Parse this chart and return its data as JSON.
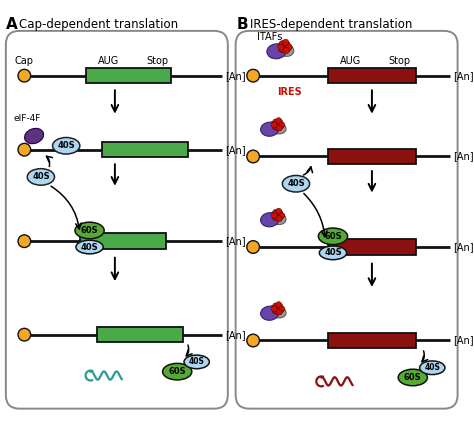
{
  "title_A": "Cap-dependent translation",
  "title_B": "IRES-dependent translation",
  "label_A": "A",
  "label_B": "B",
  "bg_color": "#ffffff",
  "line_color": "#111111",
  "cap_color": "#f5a623",
  "green_box_color": "#4aaa4a",
  "red_box_color": "#8b1010",
  "s40_color_light": "#aed6f1",
  "s60_color": "#55aa33",
  "purple_color": "#6644aa",
  "gray_color": "#999999",
  "red_protein_color": "#cc1100",
  "teal_color": "#2a9d8f",
  "dark_red_protein": "#8b1010",
  "eIF_purple": "#5c3380",
  "an_text": "[An]",
  "aug_text": "AUG",
  "stop_text": "Stop",
  "cap_text": "Cap",
  "eif_text": "eIF-4F",
  "itafs_text": "ITAFs",
  "ires_text": "IRES",
  "s40_text": "40S",
  "s60_text": "60S"
}
